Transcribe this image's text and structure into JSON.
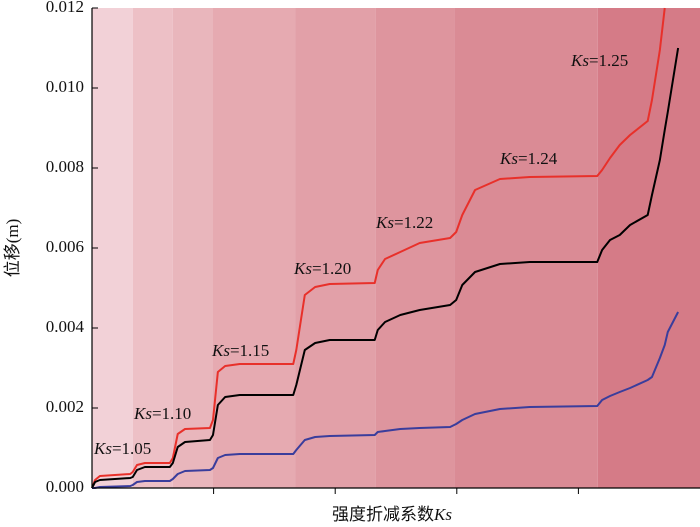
{
  "chart_data": {
    "type": "line",
    "x_label": "强度折减系数Ks",
    "y_label": "位移(m)",
    "xlim": [
      0,
      100
    ],
    "xticks": [
      20,
      40,
      60,
      80
    ],
    "ylim": [
      0,
      0.012
    ],
    "yticks": [
      {
        "value": 0,
        "label": "0.000"
      },
      {
        "value": 0.002,
        "label": "0.002"
      },
      {
        "value": 0.004,
        "label": "0.004"
      },
      {
        "value": 0.006,
        "label": "0.006"
      },
      {
        "value": 0.008,
        "label": "0.008"
      },
      {
        "value": 0.01,
        "label": "0.010"
      },
      {
        "value": 0.012,
        "label": "0.012"
      }
    ],
    "stage_bounds": [
      0,
      6.7,
      13.3,
      19.9,
      33.4,
      46.7,
      59.7,
      83.2,
      100
    ],
    "stage_colors": [
      "#f2d1d7",
      "#edc0c6",
      "#e9b6bc",
      "#e6aab1",
      "#e2a0a8",
      "#de959e",
      "#da8b95",
      "#d57b87"
    ],
    "annotations": [
      "Ks=1.05",
      "Ks=1.10",
      "Ks=1.15",
      "Ks=1.20",
      "Ks=1.22",
      "Ks=1.24",
      "Ks=1.25"
    ],
    "x": [
      0,
      0.5,
      1.3,
      6.3,
      6.7,
      7.4,
      8.7,
      12.8,
      13.3,
      14.1,
      15.3,
      19.4,
      19.9,
      20.7,
      21.9,
      24.3,
      33.1,
      33.6,
      35,
      36.7,
      39.1,
      46.5,
      47,
      48.2,
      50.7,
      53.9,
      58.9,
      59.9,
      60.9,
      63,
      67.1,
      72,
      83.1,
      83.9,
      85.2,
      86.8,
      88.5,
      91.4,
      92.1,
      93.4,
      94.2,
      94.7,
      96.4
    ],
    "series": [
      {
        "color": "#e8302a",
        "values": [
          0,
          0.0002,
          0.0003,
          0.00035,
          0.0004,
          0.000575,
          0.000625,
          0.000625,
          0.00075,
          0.00135,
          0.001475,
          0.0015,
          0.0017,
          0.0029,
          0.00305,
          0.0031,
          0.0031,
          0.00345,
          0.004825,
          0.005025,
          0.0051,
          0.005125,
          0.00545,
          0.005725,
          0.0059,
          0.006125,
          0.00625,
          0.0064,
          0.006825,
          0.00745,
          0.007725,
          0.007775,
          0.0078,
          0.00795,
          0.00825,
          0.008575,
          0.008825,
          0.009175,
          0.0097,
          0.01095,
          0.012,
          null,
          null
        ]
      },
      {
        "color": "#000000",
        "values": [
          0,
          0.00015,
          0.0002,
          0.00025,
          0.000275,
          0.00045,
          0.000525,
          0.000525,
          0.000625,
          0.001025,
          0.00115,
          0.0012,
          0.001325,
          0.002075,
          0.002275,
          0.002325,
          0.002325,
          0.002575,
          0.00345,
          0.003625,
          0.0037,
          0.0037,
          0.00395,
          0.00415,
          0.004325,
          0.00445,
          0.004575,
          0.0047,
          0.005075,
          0.0054,
          0.0056,
          0.00565,
          0.00565,
          0.00595,
          0.0062,
          0.006325,
          0.006575,
          0.006825,
          0.007325,
          0.0082,
          0.00895,
          0.0094,
          0.011
        ]
      },
      {
        "color": "#3a3d9c",
        "values": [
          0,
          0,
          2.5e-05,
          5e-05,
          7.5e-05,
          0.00015,
          0.000175,
          0.000175,
          0.000225,
          0.00035,
          0.000425,
          0.00045,
          0.0005,
          0.00075,
          0.000825,
          0.00085,
          0.00085,
          0.00095,
          0.0012,
          0.001275,
          0.0013,
          0.001325,
          0.0014,
          0.001425,
          0.001475,
          0.0015,
          0.001525,
          0.0016,
          0.0017,
          0.00185,
          0.001975,
          0.002025,
          0.00205,
          0.0022,
          0.0023,
          0.0024,
          0.0025,
          0.0027,
          0.002775,
          0.00325,
          0.003575,
          0.0039,
          0.0044
        ]
      }
    ]
  }
}
